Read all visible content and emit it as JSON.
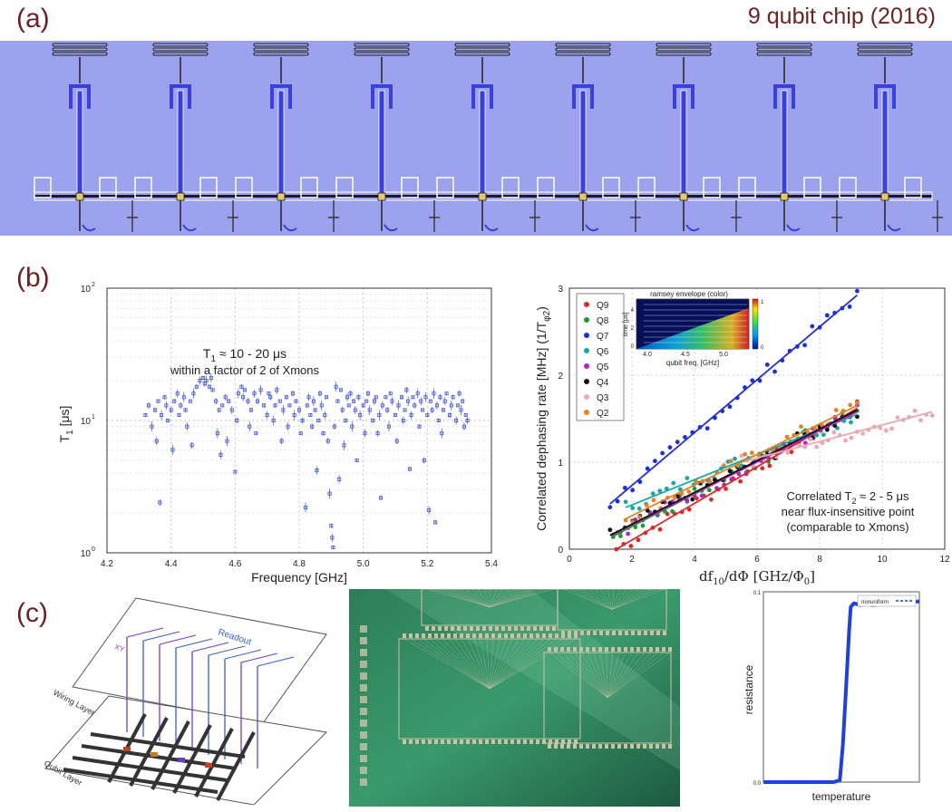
{
  "panel_a": {
    "label": "(a)",
    "title": "9 qubit chip (2016)",
    "qubit_count": 9,
    "colors": {
      "background": "#9da2ee",
      "metal": "#3b3fdb",
      "wire": "#2a2a2a"
    }
  },
  "panel_b": {
    "label": "(b)"
  },
  "panel_c": {
    "label": "(c)",
    "diagram": {
      "wiring_layer": "Wiring Layer",
      "qubit_layer": "Qubit Layer",
      "readout": "Readout",
      "xy": "XY"
    },
    "photo_colors": {
      "substrate": "#2a7a56",
      "pads": "#c9c2a6"
    }
  },
  "chart_data": [
    {
      "type": "scatter",
      "id": "t1-vs-frequency",
      "xlabel": "Frequency [GHz]",
      "ylabel": "T1 [μs]",
      "ylabel_main": "T",
      "ylabel_sub": "1",
      "ylabel_unit": " [μs]",
      "xlim": [
        4.2,
        5.4
      ],
      "ylim": [
        1,
        100
      ],
      "yscale": "log",
      "grid": true,
      "x_ticks": [
        "4.2",
        "4.4",
        "4.6",
        "4.8",
        "5.0",
        "5.2",
        "5.4"
      ],
      "y_ticks": [
        "10",
        "10",
        "10"
      ],
      "y_tick_exps": [
        "0",
        "1",
        "2"
      ],
      "annotation_line1": "T1 ≈ 10 - 20 μs",
      "annotation_line1_main": "T",
      "annotation_line1_sub": "1",
      "annotation_line1_rest": " ≈ 10 - 20 μs",
      "annotation_line2": "within a factor of 2 of Xmons",
      "color": "#3d4fd6",
      "points": [
        [
          4.32,
          11
        ],
        [
          4.33,
          13
        ],
        [
          4.34,
          9
        ],
        [
          4.35,
          12
        ],
        [
          4.355,
          7
        ],
        [
          4.36,
          14
        ],
        [
          4.365,
          2.4
        ],
        [
          4.37,
          11
        ],
        [
          4.38,
          15
        ],
        [
          4.385,
          13
        ],
        [
          4.39,
          10
        ],
        [
          4.4,
          12
        ],
        [
          4.405,
          6
        ],
        [
          4.41,
          14
        ],
        [
          4.42,
          16
        ],
        [
          4.425,
          11
        ],
        [
          4.43,
          13
        ],
        [
          4.44,
          15
        ],
        [
          4.445,
          12
        ],
        [
          4.45,
          9
        ],
        [
          4.46,
          14
        ],
        [
          4.465,
          6.5
        ],
        [
          4.47,
          16
        ],
        [
          4.48,
          18
        ],
        [
          4.49,
          20
        ],
        [
          4.5,
          21
        ],
        [
          4.505,
          19
        ],
        [
          4.51,
          20
        ],
        [
          4.52,
          18
        ],
        [
          4.525,
          21
        ],
        [
          4.53,
          17
        ],
        [
          4.54,
          14
        ],
        [
          4.545,
          8
        ],
        [
          4.55,
          12
        ],
        [
          4.555,
          5.5
        ],
        [
          4.56,
          13
        ],
        [
          4.57,
          15
        ],
        [
          4.575,
          7
        ],
        [
          4.58,
          14
        ],
        [
          4.59,
          12
        ],
        [
          4.6,
          4.1
        ],
        [
          4.605,
          10
        ],
        [
          4.61,
          16
        ],
        [
          4.62,
          18
        ],
        [
          4.625,
          15
        ],
        [
          4.63,
          17
        ],
        [
          4.64,
          14
        ],
        [
          4.645,
          9
        ],
        [
          4.65,
          12
        ],
        [
          4.66,
          16
        ],
        [
          4.665,
          8
        ],
        [
          4.67,
          14
        ],
        [
          4.68,
          17
        ],
        [
          4.69,
          13
        ],
        [
          4.7,
          11
        ],
        [
          4.705,
          16
        ],
        [
          4.71,
          15
        ],
        [
          4.72,
          10
        ],
        [
          4.725,
          13
        ],
        [
          4.73,
          17
        ],
        [
          4.74,
          14
        ],
        [
          4.745,
          7
        ],
        [
          4.75,
          12
        ],
        [
          4.76,
          15
        ],
        [
          4.765,
          9
        ],
        [
          4.77,
          13
        ],
        [
          4.78,
          16
        ],
        [
          4.785,
          11
        ],
        [
          4.79,
          14
        ],
        [
          4.8,
          12
        ],
        [
          4.805,
          8
        ],
        [
          4.81,
          10
        ],
        [
          4.82,
          2.2
        ],
        [
          4.825,
          13
        ],
        [
          4.83,
          15
        ],
        [
          4.835,
          11
        ],
        [
          4.84,
          9
        ],
        [
          4.845,
          14
        ],
        [
          4.85,
          12
        ],
        [
          4.855,
          4.2
        ],
        [
          4.86,
          10
        ],
        [
          4.865,
          16
        ],
        [
          4.87,
          13
        ],
        [
          4.875,
          8
        ],
        [
          4.88,
          11
        ],
        [
          4.885,
          15
        ],
        [
          4.89,
          7
        ],
        [
          4.895,
          2.8
        ],
        [
          4.9,
          1.6
        ],
        [
          4.903,
          1.3
        ],
        [
          4.906,
          1.1
        ],
        [
          4.91,
          9
        ],
        [
          4.915,
          18
        ],
        [
          4.92,
          14
        ],
        [
          4.925,
          3.6
        ],
        [
          4.93,
          17
        ],
        [
          4.935,
          12
        ],
        [
          4.94,
          6.5
        ],
        [
          4.945,
          10
        ],
        [
          4.95,
          15
        ],
        [
          4.955,
          13
        ],
        [
          4.96,
          16
        ],
        [
          4.965,
          9
        ],
        [
          4.97,
          14
        ],
        [
          4.975,
          12
        ],
        [
          4.98,
          5
        ],
        [
          4.985,
          15
        ],
        [
          4.99,
          11
        ],
        [
          5.0,
          13
        ],
        [
          5.005,
          8
        ],
        [
          5.01,
          14
        ],
        [
          5.015,
          16
        ],
        [
          5.02,
          12
        ],
        [
          5.03,
          10
        ],
        [
          5.035,
          14
        ],
        [
          5.04,
          15
        ],
        [
          5.045,
          8
        ],
        [
          5.05,
          11
        ],
        [
          5.055,
          2.6
        ],
        [
          5.06,
          13
        ],
        [
          5.07,
          15
        ],
        [
          5.075,
          12
        ],
        [
          5.08,
          9
        ],
        [
          5.085,
          16
        ],
        [
          5.09,
          14
        ],
        [
          5.1,
          11
        ],
        [
          5.105,
          7
        ],
        [
          5.11,
          13
        ],
        [
          5.12,
          15
        ],
        [
          5.125,
          10
        ],
        [
          5.13,
          12
        ],
        [
          5.135,
          17
        ],
        [
          5.14,
          14
        ],
        [
          5.145,
          4.3
        ],
        [
          5.15,
          11
        ],
        [
          5.155,
          15
        ],
        [
          5.16,
          13
        ],
        [
          5.17,
          16
        ],
        [
          5.175,
          9
        ],
        [
          5.18,
          14
        ],
        [
          5.185,
          12
        ],
        [
          5.19,
          5
        ],
        [
          5.195,
          15
        ],
        [
          5.2,
          11
        ],
        [
          5.205,
          2.1
        ],
        [
          5.21,
          14
        ],
        [
          5.215,
          12
        ],
        [
          5.22,
          16
        ],
        [
          5.225,
          1.7
        ],
        [
          5.23,
          13
        ],
        [
          5.235,
          10
        ],
        [
          5.24,
          15
        ],
        [
          5.245,
          8
        ],
        [
          5.25,
          12
        ],
        [
          5.255,
          14
        ],
        [
          5.26,
          16
        ],
        [
          5.27,
          11
        ],
        [
          5.275,
          13
        ],
        [
          5.28,
          15
        ],
        [
          5.29,
          10
        ],
        [
          5.295,
          13
        ],
        [
          5.3,
          16
        ],
        [
          5.305,
          12
        ],
        [
          5.31,
          14
        ],
        [
          5.315,
          9
        ],
        [
          5.32,
          11
        ],
        [
          5.325,
          10
        ]
      ]
    },
    {
      "type": "scatter",
      "id": "dephasing-rate",
      "xlabel": "df10/dΦ [GHz/Φ0]",
      "xlabel_parts": {
        "a": "df",
        "a_sub": "10",
        "b": "/dΦ  [GHz/Φ",
        "b_sub": "0",
        "c": "]"
      },
      "ylabel": "Correlated dephasing rate [MHz] (1/Tφ2)",
      "ylabel_main": "Correlated dephasing rate [MHz] (1/T",
      "ylabel_sub": "φ2",
      "ylabel_end": ")",
      "xlim": [
        0,
        12
      ],
      "ylim": [
        0,
        3
      ],
      "grid": true,
      "x_ticks": [
        "0",
        "2",
        "4",
        "6",
        "8",
        "10",
        "12"
      ],
      "y_ticks": [
        "0",
        "1",
        "2",
        "3"
      ],
      "legend_position": "top-left",
      "annotation_line1": "Correlated T2 ≈ 2 - 5 μs",
      "annotation_line1_main": "Correlated T",
      "annotation_line1_sub": "2",
      "annotation_line1_rest": " ≈ 2 - 5 μs",
      "annotation_line2": "near flux-insensitive point",
      "annotation_line3": "(comparable to Xmons)",
      "series": [
        {
          "name": "Q9",
          "color": "#d42b2b",
          "fit": [
            [
              1.5,
              0.0
            ],
            [
              9.2,
              1.62
            ]
          ],
          "x_range": [
            1.5,
            9.2
          ]
        },
        {
          "name": "Q8",
          "color": "#1e9a2a",
          "fit": [
            [
              1.4,
              0.15
            ],
            [
              9.2,
              1.6
            ]
          ],
          "x_range": [
            1.4,
            9.2
          ]
        },
        {
          "name": "Q7",
          "color": "#1f2fd0",
          "fit": [
            [
              1.3,
              0.52
            ],
            [
              9.2,
              2.92
            ]
          ],
          "x_range": [
            1.3,
            9.2
          ]
        },
        {
          "name": "Q6",
          "color": "#1aa6a6",
          "fit": [
            [
              1.8,
              0.48
            ],
            [
              9.2,
              1.55
            ]
          ],
          "x_range": [
            1.8,
            9.0
          ]
        },
        {
          "name": "Q5",
          "color": "#b324c4",
          "fit": [
            [
              1.4,
              0.17
            ],
            [
              9.2,
              1.58
            ]
          ],
          "x_range": [
            1.4,
            9.2
          ]
        },
        {
          "name": "Q4",
          "color": "#111111",
          "fit": [
            [
              1.3,
              0.16
            ],
            [
              9.2,
              1.6
            ]
          ],
          "x_range": [
            1.3,
            9.2
          ]
        },
        {
          "name": "Q3",
          "color": "#e8a9b2",
          "fit": [
            [
              5.5,
              1.0
            ],
            [
              11.6,
              1.58
            ]
          ],
          "x_range": [
            5.5,
            11.6
          ]
        },
        {
          "name": "Q2",
          "color": "#e0842a",
          "fit": [
            [
              1.8,
              0.35
            ],
            [
              9.2,
              1.65
            ]
          ],
          "x_range": [
            1.8,
            9.2
          ]
        }
      ],
      "inset": {
        "title": "ramsey envelope (color)",
        "xlabel": "qubit freq. [GHz]",
        "ylabel": "time [μs]",
        "x_ticks": [
          "4.0",
          "4.5",
          "5.0"
        ],
        "y_ticks": [
          "0",
          "2",
          "4"
        ],
        "colorbar_ticks": [
          "0",
          "1"
        ]
      }
    },
    {
      "type": "line",
      "id": "resistance-vs-temperature",
      "xlabel": "temperature",
      "ylabel": "resistance",
      "y_ticks": [
        "0.0",
        "0.1"
      ],
      "ylim": [
        0,
        0.1
      ],
      "legend_entry": "nonuniform",
      "legend_position": "top-right",
      "color": "#1f3fe0",
      "points": [
        [
          0.0,
          0.0
        ],
        [
          0.45,
          0.0
        ],
        [
          0.49,
          0.001
        ],
        [
          0.51,
          0.02
        ],
        [
          0.53,
          0.05
        ],
        [
          0.55,
          0.08
        ],
        [
          0.56,
          0.092
        ],
        [
          0.58,
          0.094
        ],
        [
          0.62,
          0.093
        ],
        [
          0.66,
          0.094
        ],
        [
          0.7,
          0.093
        ],
        [
          0.8,
          0.094
        ],
        [
          0.9,
          0.094
        ],
        [
          1.0,
          0.095
        ]
      ]
    }
  ]
}
